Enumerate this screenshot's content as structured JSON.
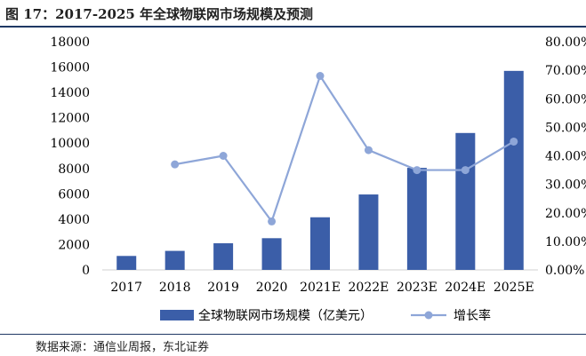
{
  "figure_title": "图 17：2017-2025 年全球物联网市场规模及预测",
  "source_note": "数据来源：通信业周报，东北证券",
  "colors": {
    "bar": "#3b5ea8",
    "line": "#8ea6d8",
    "title_rule": "#1f3864"
  },
  "chart_data": {
    "type": "bar",
    "categories": [
      "2017",
      "2018",
      "2019",
      "2020",
      "2021E",
      "2022E",
      "2023E",
      "2024E",
      "2025E"
    ],
    "series": [
      {
        "name": "全球物联网市场规模（亿美元）",
        "type": "bar",
        "axis": "left",
        "values": [
          1100,
          1500,
          2100,
          2500,
          4150,
          5950,
          8050,
          10800,
          15700
        ]
      },
      {
        "name": "增长率",
        "type": "line",
        "axis": "right",
        "values": [
          null,
          0.37,
          0.4,
          0.17,
          0.68,
          0.42,
          0.35,
          0.35,
          0.45
        ]
      }
    ],
    "y_left": {
      "min": 0,
      "max": 18000,
      "ticks": [
        "0",
        "2000",
        "4000",
        "6000",
        "8000",
        "10000",
        "12000",
        "14000",
        "16000",
        "18000"
      ]
    },
    "y_right": {
      "min": 0,
      "max": 0.8,
      "ticks": [
        "0.00%",
        "10.00%",
        "20.00%",
        "30.00%",
        "40.00%",
        "50.00%",
        "60.00%",
        "70.00%",
        "80.00%"
      ]
    },
    "legend_position": "bottom",
    "grid": false
  }
}
